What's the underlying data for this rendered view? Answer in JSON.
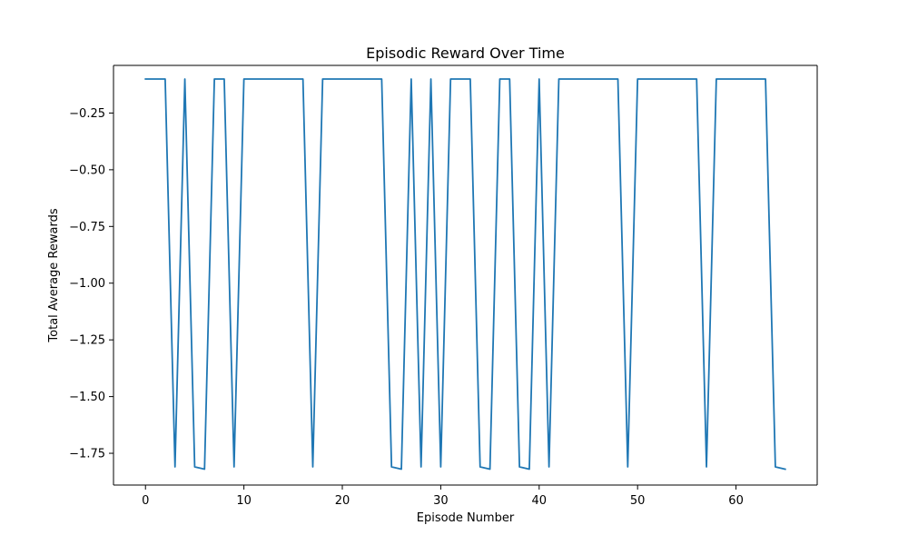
{
  "chart_data": {
    "type": "line",
    "title": "Episodic Reward Over Time",
    "xlabel": "Episode Number",
    "ylabel": "Total Average Rewards",
    "xlim": [
      -3.25,
      68.25
    ],
    "ylim": [
      -1.89,
      -0.04
    ],
    "xticks": [
      0,
      10,
      20,
      30,
      40,
      50,
      60
    ],
    "yticks": [
      -0.25,
      -0.5,
      -0.75,
      -1.0,
      -1.25,
      -1.5,
      -1.75
    ],
    "ytick_labels": [
      "−0.25",
      "−0.50",
      "−0.75",
      "−1.00",
      "−1.25",
      "−1.50",
      "−1.75"
    ],
    "grid": false,
    "legend": "none",
    "series": [
      {
        "color": "#1f77b4",
        "x": [
          0,
          1,
          2,
          3,
          4,
          5,
          6,
          7,
          8,
          9,
          10,
          11,
          12,
          13,
          14,
          15,
          16,
          17,
          18,
          19,
          20,
          21,
          22,
          23,
          24,
          25,
          26,
          27,
          28,
          29,
          30,
          31,
          32,
          33,
          34,
          35,
          36,
          37,
          38,
          39,
          40,
          41,
          42,
          43,
          44,
          45,
          46,
          47,
          48,
          49,
          50,
          51,
          52,
          53,
          54,
          55,
          56,
          57,
          58,
          59,
          60,
          61,
          62,
          63,
          64,
          65
        ],
        "values": [
          -0.1,
          -0.1,
          -0.1,
          -1.81,
          -0.1,
          -1.81,
          -1.82,
          -0.1,
          -0.1,
          -1.81,
          -0.1,
          -0.1,
          -0.1,
          -0.1,
          -0.1,
          -0.1,
          -0.1,
          -1.81,
          -0.1,
          -0.1,
          -0.1,
          -0.1,
          -0.1,
          -0.1,
          -0.1,
          -1.81,
          -1.82,
          -0.1,
          -1.81,
          -0.1,
          -1.81,
          -0.1,
          -0.1,
          -0.1,
          -1.81,
          -1.82,
          -0.1,
          -0.1,
          -1.81,
          -1.82,
          -0.1,
          -1.81,
          -0.1,
          -0.1,
          -0.1,
          -0.1,
          -0.1,
          -0.1,
          -0.1,
          -1.81,
          -0.1,
          -0.1,
          -0.1,
          -0.1,
          -0.1,
          -0.1,
          -0.1,
          -1.81,
          -0.1,
          -0.1,
          -0.1,
          -0.1,
          -0.1,
          -0.1,
          -1.81,
          -1.82
        ]
      }
    ]
  }
}
